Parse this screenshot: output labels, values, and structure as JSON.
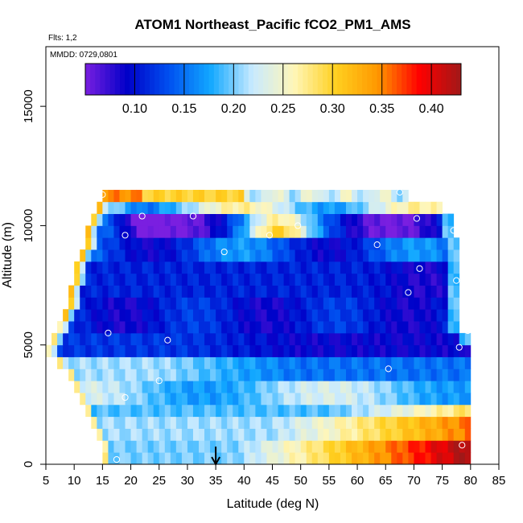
{
  "chart_data": {
    "type": "heatmap",
    "title": "ATOM1 Northeast_Pacific fCO2_PM1_AMS",
    "flights_text": "Flts: 1,2",
    "date_text": "MMDD: 0729,0801",
    "xlabel": "Latitude (deg N)",
    "ylabel": "Altitude (m)",
    "xlim": [
      5,
      85
    ],
    "ylim": [
      0,
      17500
    ],
    "x_ticks": [
      5,
      10,
      15,
      20,
      25,
      30,
      35,
      40,
      45,
      50,
      55,
      60,
      65,
      70,
      75,
      80,
      85
    ],
    "y_ticks": [
      0,
      5000,
      10000,
      15000
    ],
    "grid": false,
    "legend": "colorbar top",
    "colorbar": {
      "range": [
        0.05,
        0.43
      ],
      "ticks": [
        0.1,
        0.15,
        0.2,
        0.25,
        0.3,
        0.35,
        0.4
      ],
      "tick_labels": [
        "0.10",
        "0.15",
        "0.20",
        "0.25",
        "0.30",
        "0.35",
        "0.40"
      ],
      "colors": [
        "#7a1fe0",
        "#0000c8",
        "#0050f0",
        "#12a8ff",
        "#c8eaff",
        "#fff6b8",
        "#ffd020",
        "#ff9800",
        "#ff0000",
        "#a01818"
      ]
    },
    "marker_latitude": 35,
    "cell_size": {
      "dlat": 1,
      "dalt": 500
    },
    "extent_rows": [
      [
        0.5,
        15,
        80
      ],
      [
        1,
        15,
        80
      ],
      [
        1.5,
        14,
        80
      ],
      [
        2,
        13,
        80
      ],
      [
        2.5,
        12,
        80
      ],
      [
        3,
        11,
        80
      ],
      [
        3.5,
        10,
        80
      ],
      [
        4,
        9,
        80
      ],
      [
        4.5,
        7,
        80
      ],
      [
        5,
        5,
        80
      ],
      [
        5.5,
        6,
        80
      ],
      [
        6,
        7,
        78
      ],
      [
        6.5,
        8,
        78
      ],
      [
        7,
        9,
        78
      ],
      [
        7.5,
        9,
        78
      ],
      [
        8,
        10,
        78
      ],
      [
        8.5,
        10,
        78
      ],
      [
        9,
        11,
        78
      ],
      [
        9.5,
        12,
        78
      ],
      [
        10,
        12,
        77
      ],
      [
        10.5,
        13,
        77
      ],
      [
        11,
        14,
        75
      ],
      [
        11.5,
        15,
        69
      ]
    ],
    "sample_points": [
      [
        17.5,
        200
      ],
      [
        78.5,
        800
      ],
      [
        19,
        2800
      ],
      [
        25,
        3500
      ],
      [
        65.5,
        4000
      ],
      [
        78,
        4900
      ],
      [
        26.5,
        5200
      ],
      [
        16,
        5500
      ],
      [
        79.5,
        5600
      ],
      [
        69,
        7200
      ],
      [
        77.5,
        7700
      ],
      [
        71,
        8200
      ],
      [
        36.5,
        8900
      ],
      [
        63.5,
        9200
      ],
      [
        19,
        9600
      ],
      [
        44.5,
        9600
      ],
      [
        49.5,
        10000
      ],
      [
        77,
        9800
      ],
      [
        22,
        10400
      ],
      [
        31,
        10400
      ],
      [
        70.5,
        10300
      ],
      [
        15,
        11300
      ],
      [
        67.5,
        11400
      ]
    ]
  }
}
